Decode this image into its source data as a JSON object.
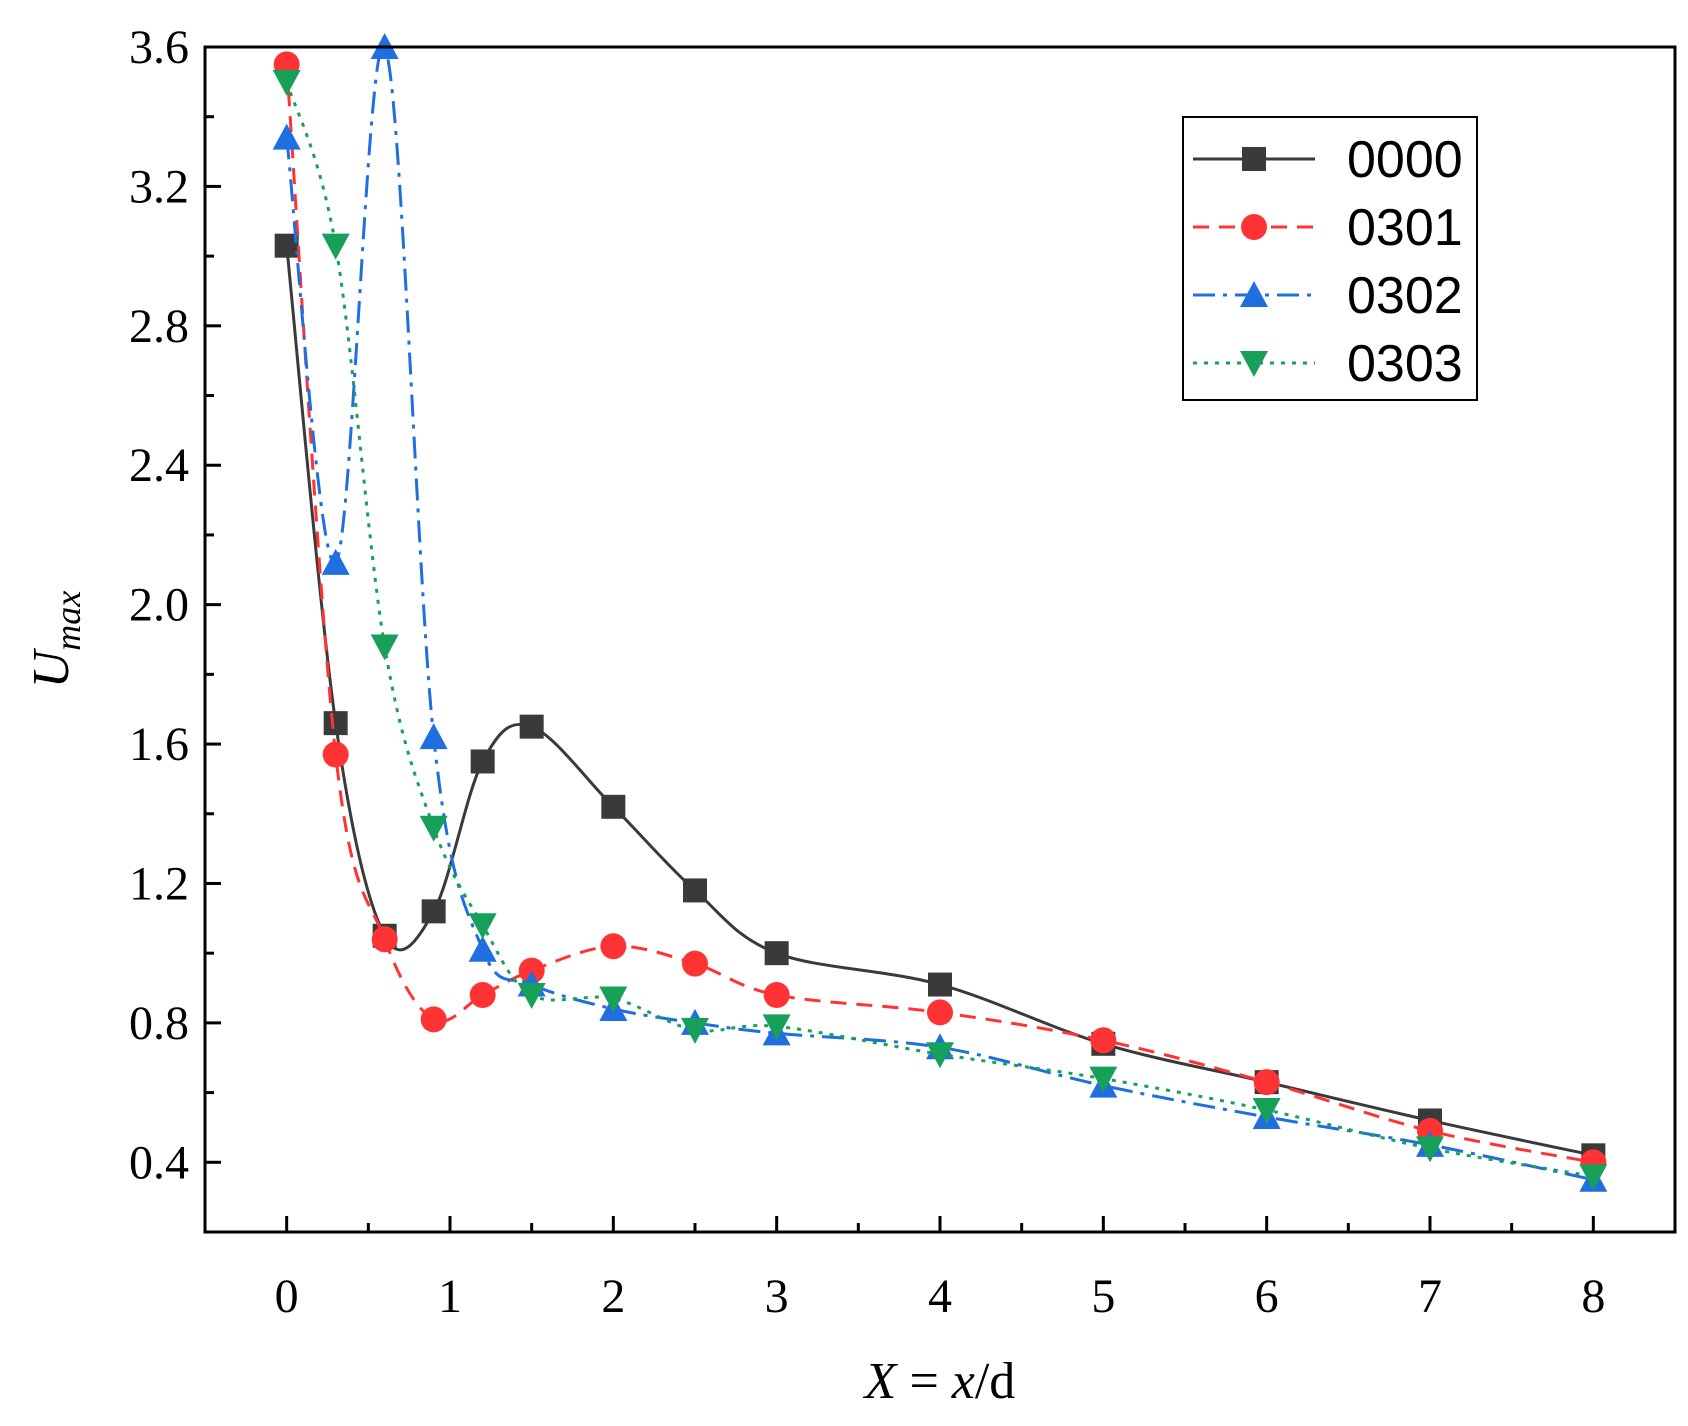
{
  "chart_data": {
    "type": "line",
    "title": "",
    "xlabel": {
      "var": "X",
      "eq": " = ",
      "x": "x",
      "slash": "/d"
    },
    "ylabel": {
      "main": "U",
      "sub": "max"
    },
    "xlim": [
      -0.5,
      8.5
    ],
    "ylim": [
      0.2,
      3.6
    ],
    "xticks": [
      0,
      1,
      2,
      3,
      4,
      5,
      6,
      7,
      8
    ],
    "xtick_labels": [
      "0",
      "1",
      "2",
      "3",
      "4",
      "5",
      "6",
      "7",
      "8"
    ],
    "yticks": [
      0.4,
      0.8,
      1.2,
      1.6,
      2.0,
      2.4,
      2.8,
      3.2,
      3.6
    ],
    "ytick_labels": [
      "0.4",
      "0.8",
      "1.2",
      "1.6",
      "2.0",
      "2.4",
      "2.8",
      "3.2",
      "3.6"
    ],
    "legend_position": "top-right",
    "grid": false,
    "series": [
      {
        "name": "0000",
        "color": "#3a3a3a",
        "marker": "square",
        "dash": "solid",
        "x": [
          0,
          0.3,
          0.6,
          0.9,
          1.2,
          1.5,
          2,
          2.5,
          3,
          4,
          5,
          6,
          7,
          8
        ],
        "y": [
          3.03,
          1.66,
          1.05,
          1.12,
          1.55,
          1.65,
          1.42,
          1.18,
          1.0,
          0.91,
          0.74,
          0.63,
          0.52,
          0.42
        ]
      },
      {
        "name": "0301",
        "color": "#ff3333",
        "marker": "circle",
        "dash": "dashed",
        "x": [
          0,
          0.3,
          0.6,
          0.9,
          1.2,
          1.5,
          2,
          2.5,
          3,
          4,
          5,
          6,
          7,
          8
        ],
        "y": [
          3.55,
          1.57,
          1.04,
          0.81,
          0.88,
          0.95,
          1.02,
          0.97,
          0.88,
          0.83,
          0.75,
          0.63,
          0.49,
          0.4
        ]
      },
      {
        "name": "0302",
        "color": "#1f6fe0",
        "marker": "triangle-up",
        "dash": "dashdot",
        "x": [
          0,
          0.3,
          0.6,
          0.9,
          1.2,
          1.5,
          2,
          2.5,
          3,
          4,
          5,
          6,
          7,
          8
        ],
        "y": [
          3.34,
          2.12,
          3.6,
          1.62,
          1.01,
          0.91,
          0.84,
          0.8,
          0.77,
          0.73,
          0.62,
          0.53,
          0.45,
          0.35
        ]
      },
      {
        "name": "0303",
        "color": "#17a05a",
        "marker": "triangle-down",
        "dash": "dotted",
        "x": [
          0,
          0.3,
          0.6,
          0.9,
          1.2,
          1.5,
          2,
          2.5,
          3,
          4,
          5,
          6,
          7,
          8
        ],
        "y": [
          3.5,
          3.03,
          1.88,
          1.36,
          1.08,
          0.88,
          0.87,
          0.78,
          0.79,
          0.71,
          0.64,
          0.55,
          0.44,
          0.36
        ]
      }
    ]
  }
}
